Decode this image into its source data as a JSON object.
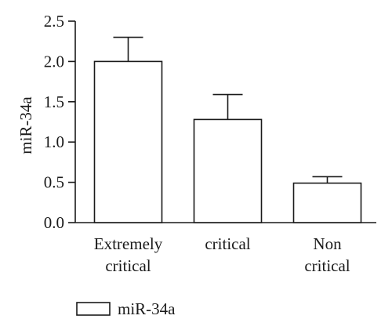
{
  "chart_data": {
    "type": "bar",
    "categories": [
      [
        "Extremely",
        "critical"
      ],
      [
        "critical"
      ],
      [
        "Non",
        "critical"
      ]
    ],
    "series": [
      {
        "name": "miR-34a",
        "values": [
          2.0,
          1.28,
          0.49
        ],
        "error_upper": [
          0.3,
          0.31,
          0.08
        ]
      }
    ],
    "ylabel": "miR-34a",
    "ylim": [
      0,
      2.5
    ],
    "yticks": [
      "0.0",
      "0.5",
      "1.0",
      "1.5",
      "2.0",
      "2.5"
    ],
    "grid": false,
    "legend": "bottom-left",
    "colors": {
      "bar_fill": "#ffffff",
      "stroke": "#1a1a1a"
    }
  }
}
